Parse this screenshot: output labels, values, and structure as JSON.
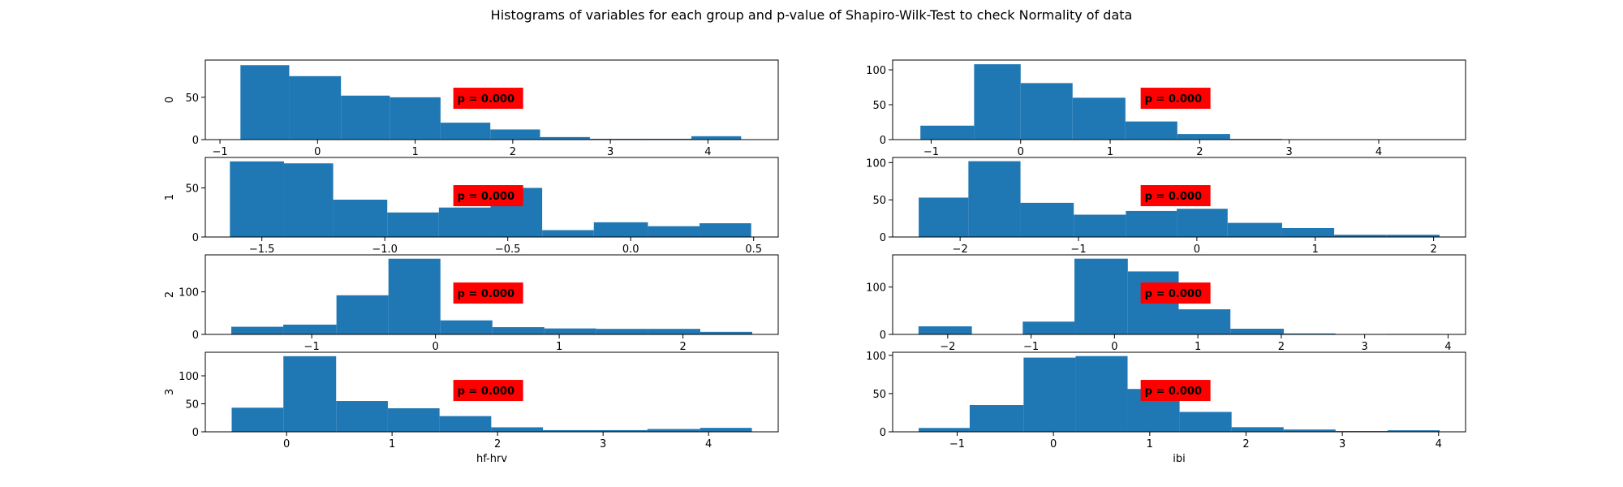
{
  "title": "Histograms of variables for each group and p-value of Shapiro-Wilk-Test to check Normality of data",
  "colors": {
    "bar": "#1f77b4",
    "pbox": "#ff0000",
    "text": "#000000",
    "background": "#ffffff"
  },
  "chart_data": [
    {
      "type": "bar",
      "group": "0",
      "column": "hf-hrv",
      "ylabel": "0",
      "xlabel": "",
      "p_value": "p = 0.000",
      "edges": [
        -0.79,
        -0.29,
        0.24,
        0.74,
        1.26,
        1.77,
        2.28,
        2.79,
        3.31,
        3.83,
        4.34
      ],
      "values": [
        88,
        75,
        52,
        50,
        20,
        12,
        3,
        1,
        1,
        4
      ],
      "xlim": [
        -1.15,
        4.72
      ],
      "ylim": [
        0,
        94
      ],
      "xticks": [
        -1,
        0,
        1,
        2,
        3,
        4
      ],
      "xtick_labels": [
        "−1",
        "0",
        "1",
        "2",
        "3",
        "4"
      ],
      "yticks": [
        0,
        50
      ],
      "ytick_labels": [
        "0",
        "50"
      ]
    },
    {
      "type": "bar",
      "group": "0",
      "column": "ibi",
      "ylabel": "",
      "xlabel": "",
      "p_value": "p = 0.000",
      "edges": [
        -1.12,
        -0.52,
        0.0,
        0.58,
        1.17,
        1.75,
        2.34,
        2.92,
        3.51,
        4.09,
        4.67
      ],
      "values": [
        20,
        108,
        81,
        60,
        26,
        8,
        1,
        0,
        0,
        0
      ],
      "xlim": [
        -1.43,
        4.97
      ],
      "ylim": [
        0,
        114
      ],
      "xticks": [
        -1,
        0,
        1,
        2,
        3,
        4
      ],
      "xtick_labels": [
        "−1",
        "0",
        "1",
        "2",
        "3",
        "4"
      ],
      "yticks": [
        0,
        50,
        100
      ],
      "ytick_labels": [
        "0",
        "50",
        "100"
      ]
    },
    {
      "type": "bar",
      "group": "1",
      "column": "hf-hrv",
      "ylabel": "1",
      "xlabel": "",
      "p_value": "p = 0.000",
      "edges": [
        -1.63,
        -1.41,
        -1.21,
        -0.99,
        -0.78,
        -0.57,
        -0.36,
        -0.15,
        0.07,
        0.28,
        0.49
      ],
      "values": [
        77,
        75,
        38,
        25,
        30,
        50,
        7,
        15,
        11,
        14
      ],
      "xlim": [
        -1.73,
        0.6
      ],
      "ylim": [
        0,
        81
      ],
      "xticks": [
        -1.5,
        -1.0,
        -0.5,
        0.0,
        0.5
      ],
      "xtick_labels": [
        "−1.5",
        "−1.0",
        "−0.5",
        "0.0",
        "0.5"
      ],
      "yticks": [
        0,
        50
      ],
      "ytick_labels": [
        "0",
        "50"
      ]
    },
    {
      "type": "bar",
      "group": "1",
      "column": "ibi",
      "ylabel": "",
      "xlabel": "",
      "p_value": "p = 0.000",
      "edges": [
        -2.35,
        -1.93,
        -1.49,
        -1.04,
        -0.6,
        -0.17,
        0.26,
        0.72,
        1.16,
        1.6,
        2.05
      ],
      "values": [
        53,
        102,
        46,
        30,
        35,
        38,
        19,
        12,
        3,
        3
      ],
      "xlim": [
        -2.57,
        2.27
      ],
      "ylim": [
        0,
        107
      ],
      "xticks": [
        -2,
        -1,
        0,
        1,
        2
      ],
      "xtick_labels": [
        "−2",
        "−1",
        "0",
        "1",
        "2"
      ],
      "yticks": [
        0,
        50,
        100
      ],
      "ytick_labels": [
        "0",
        "50",
        "100"
      ]
    },
    {
      "type": "bar",
      "group": "2",
      "column": "hf-hrv",
      "ylabel": "2",
      "xlabel": "",
      "p_value": "p = 0.000",
      "edges": [
        -1.65,
        -1.23,
        -0.8,
        -0.38,
        0.04,
        0.46,
        0.88,
        1.3,
        1.72,
        2.14,
        2.56
      ],
      "values": [
        18,
        23,
        92,
        178,
        33,
        17,
        14,
        13,
        13,
        6
      ],
      "xlim": [
        -1.86,
        2.77
      ],
      "ylim": [
        0,
        187
      ],
      "xticks": [
        -1,
        0,
        1,
        2
      ],
      "xtick_labels": [
        "−1",
        "0",
        "1",
        "2"
      ],
      "yticks": [
        0,
        100
      ],
      "ytick_labels": [
        "0",
        "100"
      ]
    },
    {
      "type": "bar",
      "group": "2",
      "column": "ibi",
      "ylabel": "",
      "xlabel": "",
      "p_value": "p = 0.000",
      "edges": [
        -2.35,
        -1.71,
        -1.1,
        -0.48,
        0.16,
        0.77,
        1.39,
        2.03,
        2.65,
        3.26,
        3.9
      ],
      "values": [
        17,
        0,
        27,
        160,
        133,
        53,
        12,
        2,
        0,
        1
      ],
      "xlim": [
        -2.66,
        4.21
      ],
      "ylim": [
        0,
        168
      ],
      "xticks": [
        -2,
        -1,
        0,
        1,
        2,
        3,
        4
      ],
      "xtick_labels": [
        "−2",
        "−1",
        "0",
        "1",
        "2",
        "3",
        "4"
      ],
      "yticks": [
        0,
        100
      ],
      "ytick_labels": [
        "0",
        "100"
      ]
    },
    {
      "type": "bar",
      "group": "3",
      "column": "hf-hrv",
      "ylabel": "3",
      "xlabel": "hf-hrv",
      "p_value": "p = 0.000",
      "edges": [
        -0.52,
        -0.03,
        0.47,
        0.96,
        1.45,
        1.94,
        2.43,
        2.93,
        3.42,
        3.92,
        4.41
      ],
      "values": [
        43,
        135,
        55,
        42,
        28,
        8,
        3,
        3,
        5,
        7
      ],
      "xlim": [
        -0.77,
        4.66
      ],
      "ylim": [
        0,
        142
      ],
      "xticks": [
        0,
        1,
        2,
        3,
        4
      ],
      "xtick_labels": [
        "0",
        "1",
        "2",
        "3",
        "4"
      ],
      "yticks": [
        0,
        50,
        100
      ],
      "ytick_labels": [
        "0",
        "50",
        "100"
      ]
    },
    {
      "type": "bar",
      "group": "3",
      "column": "ibi",
      "ylabel": "",
      "xlabel": "ibi",
      "p_value": "p = 0.000",
      "edges": [
        -1.4,
        -0.87,
        -0.31,
        0.23,
        0.77,
        1.31,
        1.85,
        2.39,
        2.93,
        3.47,
        4.01
      ],
      "values": [
        5,
        35,
        97,
        99,
        56,
        26,
        6,
        3,
        1,
        2
      ],
      "xlim": [
        -1.67,
        4.28
      ],
      "ylim": [
        0,
        104
      ],
      "xticks": [
        -1,
        0,
        1,
        2,
        3,
        4
      ],
      "xtick_labels": [
        "−1",
        "0",
        "1",
        "2",
        "3",
        "4"
      ],
      "yticks": [
        0,
        50,
        100
      ],
      "ytick_labels": [
        "0",
        "50",
        "100"
      ]
    }
  ]
}
